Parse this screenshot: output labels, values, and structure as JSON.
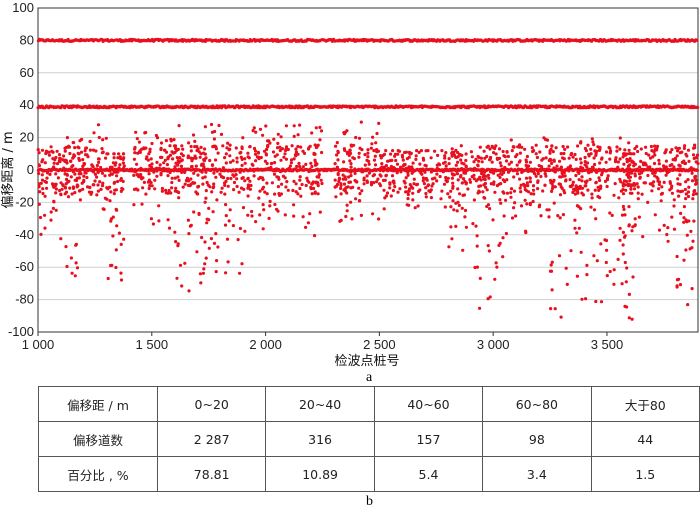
{
  "chart_data": {
    "type": "scatter",
    "xlabel": "检波点桩号",
    "ylabel": "偏移距离 / m",
    "xlim": [
      1000,
      3900
    ],
    "ylim": [
      -100,
      100
    ],
    "x_ticks": [
      1000,
      1500,
      2000,
      2500,
      3000,
      3500
    ],
    "x_tick_labels": [
      "1 000",
      "1 500",
      "2 000",
      "2 500",
      "3 000",
      "3 500"
    ],
    "y_ticks": [
      -100,
      -80,
      -60,
      -40,
      -20,
      0,
      20,
      40,
      60,
      80,
      100
    ],
    "y_tick_labels": [
      "-100",
      "-80",
      "-60",
      "-40",
      "-20",
      "0",
      "20",
      "40",
      "60",
      "80",
      "100"
    ],
    "grid_y": true,
    "marker_color": "#e8101e",
    "bands": [
      {
        "y": 80,
        "x_range": [
          1000,
          3900
        ]
      },
      {
        "y": 39,
        "x_range": [
          1000,
          3900
        ]
      },
      {
        "y": 0,
        "x_range": [
          1000,
          3900
        ]
      }
    ],
    "scatter_clusters": [
      {
        "x_range": [
          1000,
          1100
        ],
        "y_range": [
          -40,
          15
        ]
      },
      {
        "x_range": [
          1100,
          1180
        ],
        "y_range": [
          -75,
          20
        ]
      },
      {
        "x_range": [
          1180,
          1300
        ],
        "y_range": [
          -25,
          28
        ]
      },
      {
        "x_range": [
          1300,
          1380
        ],
        "y_range": [
          -73,
          10
        ]
      },
      {
        "x_range": [
          1420,
          1600
        ],
        "y_range": [
          -37,
          25
        ]
      },
      {
        "x_range": [
          1600,
          1720
        ],
        "y_range": [
          -77,
          28
        ]
      },
      {
        "x_range": [
          1720,
          1900
        ],
        "y_range": [
          -65,
          30
        ]
      },
      {
        "x_range": [
          1900,
          2250
        ],
        "y_range": [
          -42,
          28
        ]
      },
      {
        "x_range": [
          2300,
          2500
        ],
        "y_range": [
          -35,
          30
        ]
      },
      {
        "x_range": [
          2500,
          2800
        ],
        "y_range": [
          -25,
          12
        ]
      },
      {
        "x_range": [
          2800,
          2900
        ],
        "y_range": [
          -55,
          15
        ]
      },
      {
        "x_range": [
          2900,
          3050
        ],
        "y_range": [
          -90,
          15
        ]
      },
      {
        "x_range": [
          3050,
          3250
        ],
        "y_range": [
          -40,
          20
        ]
      },
      {
        "x_range": [
          3250,
          3380
        ],
        "y_range": [
          -95,
          15
        ]
      },
      {
        "x_range": [
          3380,
          3600
        ],
        "y_range": [
          -85,
          20
        ]
      },
      {
        "x_range": [
          3570,
          3620
        ],
        "y_range": [
          -98,
          10
        ]
      },
      {
        "x_range": [
          3620,
          3800
        ],
        "y_range": [
          -45,
          15
        ]
      },
      {
        "x_range": [
          3800,
          3900
        ],
        "y_range": [
          -92,
          22
        ]
      }
    ],
    "table": {
      "columns": [
        "偏移距 / m",
        "0~20",
        "20~40",
        "40~60",
        "60~80",
        "大于80"
      ],
      "rows": [
        [
          "偏移道数",
          "2 287",
          "316",
          "157",
          "98",
          "44"
        ],
        [
          "百分比 , %",
          "78.81",
          "10.89",
          "5.4",
          "3.4",
          "1.5"
        ]
      ]
    }
  },
  "labels": {
    "panel_a": "a",
    "panel_b": "b"
  }
}
